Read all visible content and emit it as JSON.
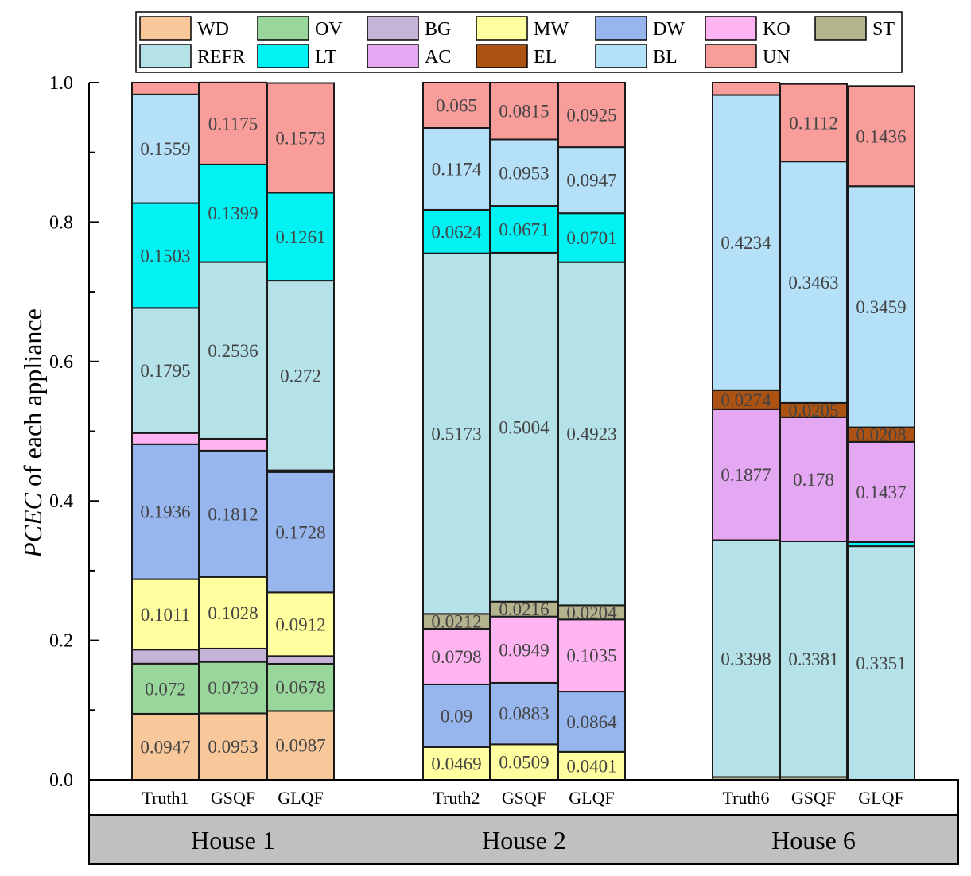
{
  "chart_data": {
    "type": "bar",
    "stacked": true,
    "ylabel_italic": "PCEC",
    "ylabel_rest": " of each appliance",
    "ylim": [
      0,
      1.0
    ],
    "yticks": [
      0.0,
      0.2,
      0.4,
      0.6,
      0.8,
      1.0
    ],
    "ytick_labels": [
      "0.0",
      "0.2",
      "0.4",
      "0.6",
      "0.8",
      "1.0"
    ],
    "legend_position": "top",
    "appliances": [
      {
        "key": "WD",
        "label": "WD",
        "color": "#F9C89A"
      },
      {
        "key": "OV",
        "label": "OV",
        "color": "#99D69B"
      },
      {
        "key": "BG",
        "label": "BG",
        "color": "#C6B4D8"
      },
      {
        "key": "MW",
        "label": "MW",
        "color": "#FFFFA0"
      },
      {
        "key": "DW",
        "label": "DW",
        "color": "#98B6EE"
      },
      {
        "key": "KO",
        "label": "KO",
        "color": "#FFB4F2"
      },
      {
        "key": "ST",
        "label": "ST",
        "color": "#B3B38E"
      },
      {
        "key": "REFR",
        "label": "REFR",
        "color": "#B5E2E8"
      },
      {
        "key": "LT",
        "label": "LT",
        "color": "#00F2F2"
      },
      {
        "key": "AC",
        "label": "AC",
        "color": "#E3A8F1"
      },
      {
        "key": "EL",
        "label": "EL",
        "color": "#AC5212"
      },
      {
        "key": "BL",
        "label": "BL",
        "color": "#B4E0F8"
      },
      {
        "key": "UN",
        "label": "UN",
        "color": "#F89D9A"
      }
    ],
    "groups": [
      {
        "name": "House 1",
        "bars": [
          {
            "name": "Truth1",
            "segments": [
              {
                "a": "WD",
                "v": 0.0947,
                "label": "0.0947"
              },
              {
                "a": "OV",
                "v": 0.072,
                "label": "0.072"
              },
              {
                "a": "BG",
                "v": 0.02
              },
              {
                "a": "MW",
                "v": 0.1011,
                "label": "0.1011"
              },
              {
                "a": "DW",
                "v": 0.1936,
                "label": "0.1936"
              },
              {
                "a": "KO",
                "v": 0.016
              },
              {
                "a": "REFR",
                "v": 0.1795,
                "label": "0.1795"
              },
              {
                "a": "LT",
                "v": 0.1503,
                "label": "0.1503"
              },
              {
                "a": "BL",
                "v": 0.1559,
                "label": "0.1559"
              },
              {
                "a": "UN",
                "v": 0.0169
              }
            ]
          },
          {
            "name": "GSQF",
            "segments": [
              {
                "a": "WD",
                "v": 0.0953,
                "label": "0.0953"
              },
              {
                "a": "OV",
                "v": 0.0739,
                "label": "0.0739"
              },
              {
                "a": "BG",
                "v": 0.019
              },
              {
                "a": "MW",
                "v": 0.1028,
                "label": "0.1028"
              },
              {
                "a": "DW",
                "v": 0.1812,
                "label": "0.1812"
              },
              {
                "a": "KO",
                "v": 0.017
              },
              {
                "a": "REFR",
                "v": 0.2536,
                "label": "0.2536"
              },
              {
                "a": "LT",
                "v": 0.1399,
                "label": "0.1399"
              },
              {
                "a": "UN",
                "v": 0.1175,
                "label": "0.1175"
              }
            ]
          },
          {
            "name": "GLQF",
            "segments": [
              {
                "a": "WD",
                "v": 0.0987,
                "label": "0.0987"
              },
              {
                "a": "OV",
                "v": 0.0678,
                "label": "0.0678"
              },
              {
                "a": "BG",
                "v": 0.011
              },
              {
                "a": "MW",
                "v": 0.0912,
                "label": "0.0912"
              },
              {
                "a": "DW",
                "v": 0.1728,
                "label": "0.1728"
              },
              {
                "a": "KO",
                "v": 0.0025
              },
              {
                "a": "REFR",
                "v": 0.272,
                "label": "0.272"
              },
              {
                "a": "LT",
                "v": 0.1261,
                "label": "0.1261"
              },
              {
                "a": "UN",
                "v": 0.1573,
                "label": "0.1573"
              }
            ]
          }
        ]
      },
      {
        "name": "House 2",
        "bars": [
          {
            "name": "Truth2",
            "segments": [
              {
                "a": "MW",
                "v": 0.0469,
                "label": "0.0469"
              },
              {
                "a": "DW",
                "v": 0.09,
                "label": "0.09"
              },
              {
                "a": "KO",
                "v": 0.0798,
                "label": "0.0798"
              },
              {
                "a": "ST",
                "v": 0.0212,
                "label": "0.0212"
              },
              {
                "a": "REFR",
                "v": 0.5173,
                "label": "0.5173"
              },
              {
                "a": "LT",
                "v": 0.0624,
                "label": "0.0624"
              },
              {
                "a": "BL",
                "v": 0.1174,
                "label": "0.1174"
              },
              {
                "a": "UN",
                "v": 0.065,
                "label": "0.065"
              }
            ]
          },
          {
            "name": "GSQF",
            "segments": [
              {
                "a": "MW",
                "v": 0.0509,
                "label": "0.0509"
              },
              {
                "a": "DW",
                "v": 0.0883,
                "label": "0.0883"
              },
              {
                "a": "KO",
                "v": 0.0949,
                "label": "0.0949"
              },
              {
                "a": "ST",
                "v": 0.0216,
                "label": "0.0216"
              },
              {
                "a": "REFR",
                "v": 0.5004,
                "label": "0.5004"
              },
              {
                "a": "LT",
                "v": 0.0671,
                "label": "0.0671"
              },
              {
                "a": "BL",
                "v": 0.0953,
                "label": "0.0953"
              },
              {
                "a": "UN",
                "v": 0.0815,
                "label": "0.0815"
              }
            ]
          },
          {
            "name": "GLQF",
            "segments": [
              {
                "a": "MW",
                "v": 0.0401,
                "label": "0.0401"
              },
              {
                "a": "DW",
                "v": 0.0864,
                "label": "0.0864"
              },
              {
                "a": "KO",
                "v": 0.1035,
                "label": "0.1035"
              },
              {
                "a": "ST",
                "v": 0.0204,
                "label": "0.0204"
              },
              {
                "a": "REFR",
                "v": 0.4923,
                "label": "0.4923"
              },
              {
                "a": "LT",
                "v": 0.0701,
                "label": "0.0701"
              },
              {
                "a": "BL",
                "v": 0.0947,
                "label": "0.0947"
              },
              {
                "a": "UN",
                "v": 0.0925,
                "label": "0.0925"
              }
            ]
          }
        ]
      },
      {
        "name": "House 6",
        "bars": [
          {
            "name": "Truth6",
            "segments": [
              {
                "a": "ST",
                "v": 0.004
              },
              {
                "a": "REFR",
                "v": 0.3398,
                "label": "0.3398"
              },
              {
                "a": "AC",
                "v": 0.1877,
                "label": "0.1877"
              },
              {
                "a": "EL",
                "v": 0.0274,
                "label": "0.0274"
              },
              {
                "a": "BL",
                "v": 0.4234,
                "label": "0.4234"
              },
              {
                "a": "UN",
                "v": 0.0177
              }
            ]
          },
          {
            "name": "GSQF",
            "segments": [
              {
                "a": "ST",
                "v": 0.004
              },
              {
                "a": "REFR",
                "v": 0.3381,
                "label": "0.3381"
              },
              {
                "a": "AC",
                "v": 0.178,
                "label": "0.178"
              },
              {
                "a": "EL",
                "v": 0.0205,
                "label": "0.0205"
              },
              {
                "a": "BL",
                "v": 0.3463,
                "label": "0.3463"
              },
              {
                "a": "UN",
                "v": 0.1112,
                "label": "0.1112"
              }
            ]
          },
          {
            "name": "GLQF",
            "segments": [
              {
                "a": "REFR",
                "v": 0.3351,
                "label": "0.3351"
              },
              {
                "a": "LT",
                "v": 0.006
              },
              {
                "a": "AC",
                "v": 0.1437,
                "label": "0.1437"
              },
              {
                "a": "EL",
                "v": 0.0208,
                "label": "0.0208"
              },
              {
                "a": "BL",
                "v": 0.3459,
                "label": "0.3459"
              },
              {
                "a": "UN",
                "v": 0.1436,
                "label": "0.1436"
              }
            ]
          }
        ]
      }
    ]
  }
}
